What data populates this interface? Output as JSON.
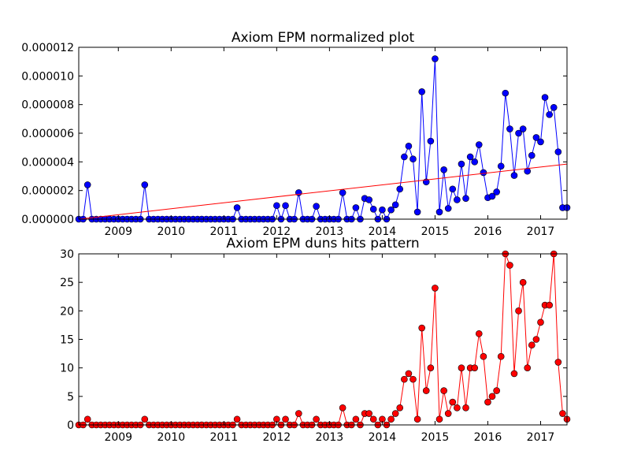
{
  "chart_data": [
    {
      "type": "line",
      "title": "Axiom EPM normalized plot",
      "xlabel": "",
      "ylabel": "",
      "xlim": [
        2008.25,
        2017.5
      ],
      "ylim": [
        0,
        1.2e-05
      ],
      "x_ticks": [
        2009,
        2010,
        2011,
        2012,
        2013,
        2014,
        2015,
        2016,
        2017
      ],
      "y_ticks": [
        "0.000000",
        "0.000002",
        "0.000004",
        "0.000006",
        "0.000008",
        "0.000010",
        "0.000012"
      ],
      "grid": false,
      "series": [
        {
          "color": "#0000ff",
          "marker": "circle",
          "x": [
            2008.25,
            2008.333,
            2008.417,
            2008.5,
            2008.583,
            2008.667,
            2008.75,
            2008.833,
            2008.917,
            2009.0,
            2009.083,
            2009.167,
            2009.25,
            2009.333,
            2009.417,
            2009.5,
            2009.583,
            2009.667,
            2009.75,
            2009.833,
            2009.917,
            2010.0,
            2010.083,
            2010.167,
            2010.25,
            2010.333,
            2010.417,
            2010.5,
            2010.583,
            2010.667,
            2010.75,
            2010.833,
            2010.917,
            2011.0,
            2011.083,
            2011.167,
            2011.25,
            2011.333,
            2011.417,
            2011.5,
            2011.583,
            2011.667,
            2011.75,
            2011.833,
            2011.917,
            2012.0,
            2012.083,
            2012.167,
            2012.25,
            2012.333,
            2012.417,
            2012.5,
            2012.583,
            2012.667,
            2012.75,
            2012.833,
            2012.917,
            2013.0,
            2013.083,
            2013.167,
            2013.25,
            2013.333,
            2013.417,
            2013.5,
            2013.583,
            2013.667,
            2013.75,
            2013.833,
            2013.917,
            2014.0,
            2014.083,
            2014.167,
            2014.25,
            2014.333,
            2014.417,
            2014.5,
            2014.583,
            2014.667,
            2014.75,
            2014.833,
            2014.917,
            2015.0,
            2015.083,
            2015.167,
            2015.25,
            2015.333,
            2015.417,
            2015.5,
            2015.583,
            2015.667,
            2015.75,
            2015.833,
            2015.917,
            2016.0,
            2016.083,
            2016.167,
            2016.25,
            2016.333,
            2016.417,
            2016.5,
            2016.583,
            2016.667,
            2016.75,
            2016.833,
            2016.917,
            2017.0,
            2017.083,
            2017.167,
            2017.25,
            2017.333,
            2017.417,
            2017.5
          ],
          "y": [
            0,
            0,
            2.4e-06,
            0,
            0,
            0,
            0,
            0,
            0,
            0,
            0,
            0,
            0,
            0,
            0,
            2.4e-06,
            0,
            0,
            0,
            0,
            0,
            0,
            0,
            0,
            0,
            0,
            0,
            0,
            0,
            0,
            0,
            0,
            0,
            0,
            0,
            0,
            8e-07,
            0,
            0,
            0,
            0,
            0,
            0,
            0,
            0,
            9.5e-07,
            0,
            9.5e-07,
            0,
            0,
            1.85e-06,
            0,
            0,
            0,
            9e-07,
            0,
            0,
            0,
            0,
            0,
            1.85e-06,
            0,
            0,
            8e-07,
            0,
            1.45e-06,
            1.35e-06,
            7e-07,
            0,
            6.5e-07,
            0,
            6.5e-07,
            1e-06,
            2.1e-06,
            4.35e-06,
            5.1e-06,
            4.2e-06,
            5e-07,
            8.9e-06,
            2.6e-06,
            5.45e-06,
            1.12e-05,
            5e-07,
            3.45e-06,
            7.5e-07,
            2.1e-06,
            1.35e-06,
            3.85e-06,
            1.45e-06,
            4.35e-06,
            4e-06,
            5.2e-06,
            3.25e-06,
            1.5e-06,
            1.6e-06,
            1.9e-06,
            3.7e-06,
            8.8e-06,
            6.3e-06,
            3.05e-06,
            6e-06,
            6.3e-06,
            3.35e-06,
            4.45e-06,
            5.7e-06,
            5.4e-06,
            8.5e-06,
            7.3e-06,
            7.8e-06,
            4.7e-06,
            8e-07,
            8e-07
          ]
        },
        {
          "color": "#ff0000",
          "marker": "none",
          "x": [
            2008.25,
            2017.5
          ],
          "y": [
            0,
            3.85e-06
          ]
        }
      ]
    },
    {
      "type": "line",
      "title": "Axiom EPM duns hits pattern",
      "xlabel": "",
      "ylabel": "",
      "xlim": [
        2008.25,
        2017.5
      ],
      "ylim": [
        0,
        30
      ],
      "x_ticks": [
        2009,
        2010,
        2011,
        2012,
        2013,
        2014,
        2015,
        2016,
        2017
      ],
      "y_ticks": [
        "0",
        "5",
        "10",
        "15",
        "20",
        "25",
        "30"
      ],
      "grid": false,
      "series": [
        {
          "color": "#ff0000",
          "marker": "circle",
          "x": [
            2008.25,
            2008.333,
            2008.417,
            2008.5,
            2008.583,
            2008.667,
            2008.75,
            2008.833,
            2008.917,
            2009.0,
            2009.083,
            2009.167,
            2009.25,
            2009.333,
            2009.417,
            2009.5,
            2009.583,
            2009.667,
            2009.75,
            2009.833,
            2009.917,
            2010.0,
            2010.083,
            2010.167,
            2010.25,
            2010.333,
            2010.417,
            2010.5,
            2010.583,
            2010.667,
            2010.75,
            2010.833,
            2010.917,
            2011.0,
            2011.083,
            2011.167,
            2011.25,
            2011.333,
            2011.417,
            2011.5,
            2011.583,
            2011.667,
            2011.75,
            2011.833,
            2011.917,
            2012.0,
            2012.083,
            2012.167,
            2012.25,
            2012.333,
            2012.417,
            2012.5,
            2012.583,
            2012.667,
            2012.75,
            2012.833,
            2012.917,
            2013.0,
            2013.083,
            2013.167,
            2013.25,
            2013.333,
            2013.417,
            2013.5,
            2013.583,
            2013.667,
            2013.75,
            2013.833,
            2013.917,
            2014.0,
            2014.083,
            2014.167,
            2014.25,
            2014.333,
            2014.417,
            2014.5,
            2014.583,
            2014.667,
            2014.75,
            2014.833,
            2014.917,
            2015.0,
            2015.083,
            2015.167,
            2015.25,
            2015.333,
            2015.417,
            2015.5,
            2015.583,
            2015.667,
            2015.75,
            2015.833,
            2015.917,
            2016.0,
            2016.083,
            2016.167,
            2016.25,
            2016.333,
            2016.417,
            2016.5,
            2016.583,
            2016.667,
            2016.75,
            2016.833,
            2016.917,
            2017.0,
            2017.083,
            2017.167,
            2017.25,
            2017.333,
            2017.417,
            2017.5
          ],
          "y": [
            0,
            0,
            1,
            0,
            0,
            0,
            0,
            0,
            0,
            0,
            0,
            0,
            0,
            0,
            0,
            1,
            0,
            0,
            0,
            0,
            0,
            0,
            0,
            0,
            0,
            0,
            0,
            0,
            0,
            0,
            0,
            0,
            0,
            0,
            0,
            0,
            1,
            0,
            0,
            0,
            0,
            0,
            0,
            0,
            0,
            1,
            0,
            1,
            0,
            0,
            2,
            0,
            0,
            0,
            1,
            0,
            0,
            0,
            0,
            0,
            3,
            0,
            0,
            1,
            0,
            2,
            2,
            1,
            0,
            1,
            0,
            1,
            2,
            3,
            8,
            9,
            8,
            1,
            17,
            6,
            10,
            24,
            1,
            6,
            2,
            4,
            3,
            10,
            3,
            10,
            10,
            16,
            12,
            4,
            5,
            6,
            12,
            30,
            28,
            9,
            20,
            25,
            10,
            14,
            15,
            18,
            21,
            21,
            30,
            11,
            2,
            1
          ]
        }
      ]
    }
  ]
}
